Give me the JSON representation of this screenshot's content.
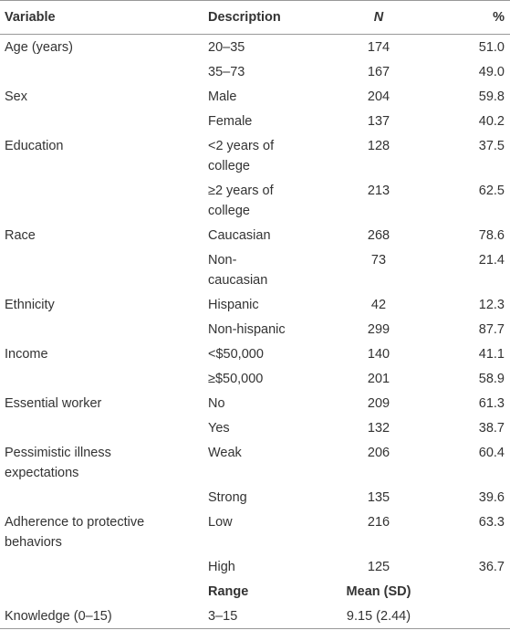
{
  "table": {
    "header": [
      "Variable",
      "Description",
      "N",
      "%"
    ],
    "rows": [
      [
        "Age (years)",
        "20–35",
        "174",
        "51.0"
      ],
      [
        null,
        "35–73",
        "167",
        "49.0"
      ],
      [
        "Sex",
        "Male",
        "204",
        "59.8"
      ],
      [
        null,
        "Female",
        "137",
        "40.2"
      ],
      [
        "Education",
        "<2 years of college",
        "128",
        "37.5"
      ],
      [
        null,
        "≥2 years of college",
        "213",
        "62.5"
      ],
      [
        "Race",
        "Caucasian",
        "268",
        "78.6"
      ],
      [
        null,
        "Non-caucasian",
        "73",
        "21.4"
      ],
      [
        "Ethnicity",
        "Hispanic",
        "42",
        "12.3"
      ],
      [
        null,
        "Non-hispanic",
        "299",
        "87.7"
      ],
      [
        "Income",
        "<$50,000",
        "140",
        "41.1"
      ],
      [
        null,
        "≥$50,000",
        "201",
        "58.9"
      ],
      [
        "Essential worker",
        "No",
        "209",
        "61.3"
      ],
      [
        null,
        "Yes",
        "132",
        "38.7"
      ],
      [
        "Pessimistic illness expectations",
        "Weak",
        "206",
        "60.4"
      ],
      [
        null,
        "Strong",
        "135",
        "39.6"
      ],
      [
        "Adherence to protective behaviors",
        "Low",
        "216",
        "63.3"
      ],
      [
        null,
        "High",
        "125",
        "36.7"
      ]
    ],
    "subheader": [
      "Range",
      "Mean (SD)"
    ],
    "final_row": [
      "Knowledge (0–15)",
      "3–15",
      "9.15 (2.44)"
    ]
  }
}
